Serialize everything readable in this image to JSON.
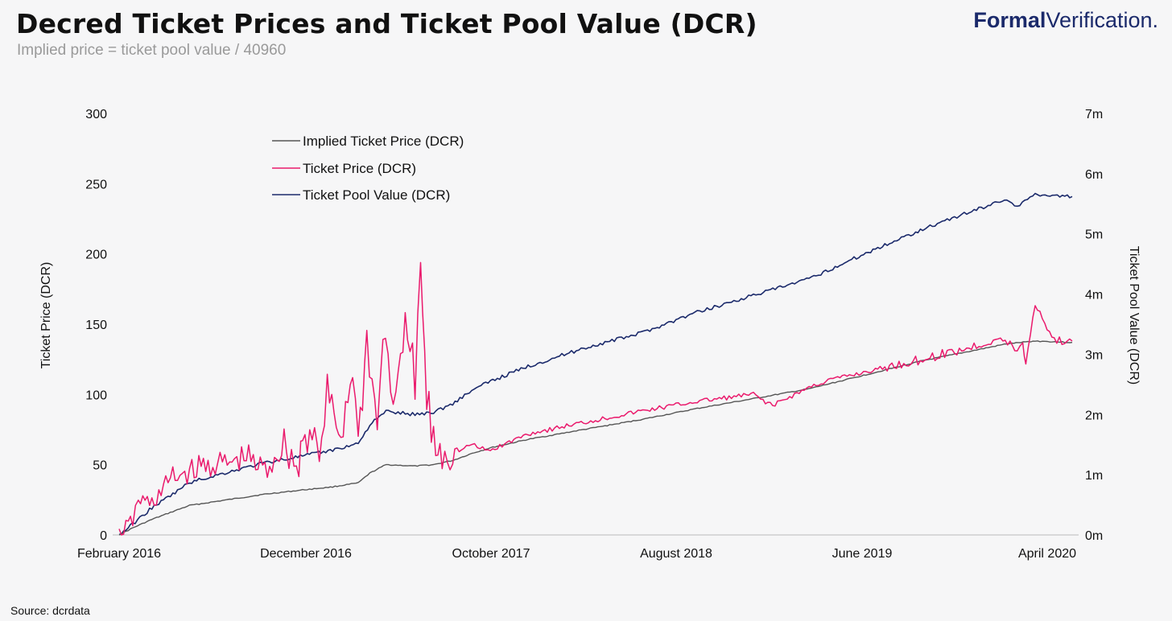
{
  "header": {
    "title": "Decred Ticket Prices and Ticket Pool Value (DCR)",
    "subtitle": "Implied price = ticket pool value / 40960",
    "logo_bold": "Formal",
    "logo_light": "Verification."
  },
  "footer": {
    "source": "Source: dcrdata"
  },
  "colors": {
    "implied": "#555555",
    "ticket_price": "#ea1a6c",
    "pool_value": "#1b2a6b"
  },
  "chart_data": {
    "type": "line",
    "title": "Decred Ticket Prices and Ticket Pool Value (DCR)",
    "subtitle": "Implied price = ticket pool value / 40960",
    "ylabel_left": "Ticket Price (DCR)",
    "ylabel_right": "Ticket Pool Value (DCR)",
    "ylim_left": [
      0,
      300
    ],
    "ylim_right": [
      0,
      7000000
    ],
    "yticks_left": [
      "0",
      "50",
      "100",
      "150",
      "200",
      "250",
      "300"
    ],
    "yticks_right": [
      "0m",
      "1m",
      "2m",
      "3m",
      "4m",
      "5m",
      "6m",
      "7m"
    ],
    "xlim": [
      "2016-02-08",
      "2020-04-30"
    ],
    "xtick_labels": [
      "February 2016",
      "December 2016",
      "October 2017",
      "August 2018",
      "June 2019",
      "April 2020"
    ],
    "legend_position": "top-left",
    "grid": false,
    "series": [
      {
        "name": "Implied Ticket Price (DCR)",
        "axis": "left",
        "x": [
          "2016-02-08",
          "2016-03-01",
          "2016-04-01",
          "2016-05-01",
          "2016-06-01",
          "2016-08-01",
          "2016-10-01",
          "2016-12-01",
          "2017-01-15",
          "2017-03-01",
          "2017-03-20",
          "2017-04-15",
          "2017-06-01",
          "2017-07-01",
          "2017-08-01",
          "2017-09-01",
          "2017-10-01",
          "2017-12-01",
          "2018-03-01",
          "2018-06-01",
          "2018-09-01",
          "2018-12-01",
          "2019-03-01",
          "2019-06-01",
          "2019-09-01",
          "2019-12-01",
          "2020-01-15",
          "2020-03-01",
          "2020-04-30"
        ],
        "values": [
          0,
          5,
          11,
          16,
          21,
          25,
          29,
          32,
          34,
          37,
          44,
          50,
          49,
          50,
          53,
          58,
          62,
          68,
          75,
          82,
          90,
          97,
          104,
          114,
          124,
          132,
          136,
          138,
          137
        ]
      },
      {
        "name": "Ticket Price (DCR)",
        "axis": "left",
        "x": [
          "2016-02-08",
          "2016-03-01",
          "2016-03-10",
          "2016-04-01",
          "2016-05-01",
          "2016-06-01",
          "2016-07-01",
          "2016-08-01",
          "2016-09-01",
          "2016-10-01",
          "2016-11-01",
          "2016-11-25",
          "2016-12-01",
          "2017-01-01",
          "2017-01-10",
          "2017-02-01",
          "2017-02-20",
          "2017-03-01",
          "2017-03-15",
          "2017-04-01",
          "2017-04-10",
          "2017-05-01",
          "2017-05-20",
          "2017-06-01",
          "2017-06-10",
          "2017-06-20",
          "2017-07-01",
          "2017-07-15",
          "2017-08-01",
          "2017-08-15",
          "2017-09-01",
          "2017-09-10",
          "2017-10-01",
          "2017-12-01",
          "2018-03-01",
          "2018-06-01",
          "2018-09-01",
          "2018-12-01",
          "2019-01-01",
          "2019-03-01",
          "2019-04-01",
          "2019-06-01",
          "2019-09-01",
          "2019-12-01",
          "2020-01-01",
          "2020-02-01",
          "2020-02-10",
          "2020-02-15",
          "2020-03-01",
          "2020-04-01",
          "2020-04-30"
        ],
        "values": [
          0,
          10,
          25,
          22,
          40,
          45,
          50,
          50,
          55,
          45,
          65,
          45,
          75,
          60,
          100,
          70,
          120,
          65,
          140,
          75,
          145,
          90,
          155,
          100,
          190,
          95,
          65,
          60,
          62,
          60,
          65,
          62,
          60,
          72,
          80,
          88,
          95,
          100,
          92,
          105,
          110,
          116,
          125,
          135,
          140,
          132,
          135,
          122,
          165,
          138,
          138
        ]
      },
      {
        "name": "Ticket Pool Value (DCR)",
        "axis": "right",
        "x": [
          "2016-02-08",
          "2016-03-01",
          "2016-04-01",
          "2016-05-01",
          "2016-06-01",
          "2016-08-01",
          "2016-10-01",
          "2016-12-01",
          "2017-01-15",
          "2017-03-01",
          "2017-03-20",
          "2017-04-15",
          "2017-06-01",
          "2017-07-01",
          "2017-08-01",
          "2017-09-01",
          "2017-10-01",
          "2017-12-01",
          "2018-03-01",
          "2018-06-01",
          "2018-09-01",
          "2018-12-01",
          "2019-03-01",
          "2019-06-01",
          "2019-09-01",
          "2019-12-01",
          "2020-01-15",
          "2020-02-01",
          "2020-03-01",
          "2020-04-30"
        ],
        "values": [
          0,
          180000,
          450000,
          650000,
          870000,
          1040000,
          1200000,
          1310000,
          1400000,
          1520000,
          1830000,
          2050000,
          2000000,
          2040000,
          2180000,
          2400000,
          2550000,
          2800000,
          3100000,
          3350000,
          3700000,
          3980000,
          4250000,
          4680000,
          5080000,
          5420000,
          5580000,
          5450000,
          5660000,
          5620000
        ]
      }
    ]
  }
}
